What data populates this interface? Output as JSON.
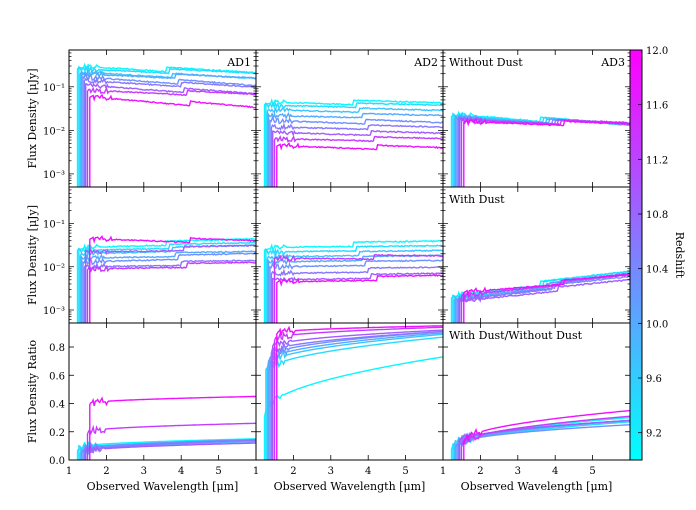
{
  "chart_data": {
    "type": "line",
    "title": "",
    "xlabel": "Observed Wavelength [μm]",
    "xlim": [
      1,
      6
    ],
    "x_ticks": [
      1,
      2,
      3,
      4,
      5
    ],
    "x_tick_labels": [
      "1",
      "2",
      "3",
      "4",
      "5"
    ],
    "row_ylabels": [
      "Flux Density [μJy]",
      "Flux Density [μJy]",
      "Flux Density Ratio"
    ],
    "log_ylim": [
      0.0005,
      0.7
    ],
    "log_ticks": [
      0.001,
      0.01,
      0.1
    ],
    "log_tick_labels": [
      "10⁻³",
      "10⁻²",
      "10⁻¹"
    ],
    "ratio_ylim": [
      0.0,
      0.97
    ],
    "ratio_ticks": [
      0.0,
      0.2,
      0.4,
      0.6,
      0.8
    ],
    "ratio_tick_labels": [
      "0.0",
      "0.2",
      "0.4",
      "0.6",
      "0.8"
    ],
    "column_labels": [
      "AD1",
      "AD2",
      "AD3"
    ],
    "panel_notes": {
      "without_dust": "Without Dust",
      "with_dust": "With Dust",
      "ratio": "With Dust/Without Dust"
    },
    "colorbar": {
      "label": "Redshift",
      "min": 9.0,
      "max": 12.0,
      "ticks": [
        9.2,
        9.6,
        10.0,
        10.4,
        10.8,
        11.2,
        11.6,
        12.0
      ],
      "tick_labels": [
        "9.2",
        "9.6",
        "10.0",
        "10.4",
        "10.8",
        "11.2",
        "11.6",
        "12.0"
      ],
      "colormap": [
        "#00ffff",
        "#ff00ff"
      ]
    },
    "redshifts": [
      9.1,
      9.4,
      9.7,
      10.0,
      10.3,
      10.6,
      10.9,
      11.3,
      11.8
    ],
    "panels": [
      {
        "row": 0,
        "col": 0,
        "kind": "log",
        "levels": [
          0.3,
          0.26,
          0.22,
          0.2,
          0.17,
          0.14,
          0.11,
          0.085,
          0.06
        ],
        "slopes": [
          -0.25,
          -0.2,
          -0.25,
          -0.2,
          -0.3,
          -0.25,
          -0.3,
          -0.2,
          -0.35
        ]
      },
      {
        "row": 0,
        "col": 1,
        "kind": "log",
        "levels": [
          0.045,
          0.038,
          0.03,
          0.022,
          0.017,
          0.012,
          0.009,
          0.0065,
          0.0045
        ],
        "slopes": [
          -0.12,
          -0.1,
          -0.12,
          -0.1,
          -0.15,
          -0.1,
          -0.12,
          -0.1,
          -0.15
        ]
      },
      {
        "row": 0,
        "col": 2,
        "kind": "log",
        "levels": [
          0.024,
          0.022,
          0.021,
          0.02,
          0.019,
          0.018,
          0.018,
          0.017,
          0.016
        ],
        "slopes": [
          -0.35,
          -0.3,
          -0.3,
          -0.25,
          -0.25,
          -0.2,
          -0.2,
          -0.15,
          -0.15
        ]
      },
      {
        "row": 1,
        "col": 0,
        "kind": "log",
        "levels": [
          0.028,
          0.024,
          0.02,
          0.016,
          0.013,
          0.01,
          0.022,
          0.009,
          0.045
        ],
        "slopes": [
          0.1,
          0.08,
          0.1,
          0.05,
          0.1,
          0.05,
          0.05,
          0.05,
          -0.15
        ]
      },
      {
        "row": 1,
        "col": 1,
        "kind": "log",
        "levels": [
          0.028,
          0.022,
          0.017,
          0.013,
          0.01,
          0.007,
          0.005,
          0.016,
          0.0045
        ],
        "slopes": [
          0.05,
          0.05,
          0.05,
          0.05,
          0.05,
          0.05,
          0.05,
          -0.05,
          0.05
        ]
      },
      {
        "row": 1,
        "col": 2,
        "kind": "log",
        "levels": [
          0.0022,
          0.002,
          0.0019,
          0.0018,
          0.0017,
          0.0017,
          0.0016,
          0.0022,
          0.0026
        ],
        "slopes": [
          0.45,
          0.5,
          0.45,
          0.5,
          0.45,
          0.5,
          0.4,
          0.4,
          0.3
        ]
      },
      {
        "row": 2,
        "col": 0,
        "kind": "ratio",
        "levels": [
          0.09,
          0.08,
          0.07,
          0.06,
          0.075,
          0.06,
          0.06,
          0.2,
          0.4
        ],
        "slopes": [
          0.06,
          0.06,
          0.07,
          0.07,
          0.07,
          0.08,
          0.06,
          0.06,
          0.05
        ]
      },
      {
        "row": 2,
        "col": 1,
        "kind": "ratio",
        "levels": [
          0.33,
          0.62,
          0.67,
          0.7,
          0.73,
          0.76,
          0.8,
          0.86,
          0.9
        ],
        "slopes": [
          0.4,
          0.25,
          0.22,
          0.2,
          0.18,
          0.15,
          0.12,
          0.08,
          0.05
        ]
      },
      {
        "row": 2,
        "col": 2,
        "kind": "ratio",
        "levels": [
          0.1,
          0.09,
          0.12,
          0.1,
          0.11,
          0.12,
          0.13,
          0.11,
          0.13
        ],
        "slopes": [
          0.2,
          0.18,
          0.16,
          0.18,
          0.14,
          0.16,
          0.15,
          0.2,
          0.22
        ]
      }
    ]
  }
}
